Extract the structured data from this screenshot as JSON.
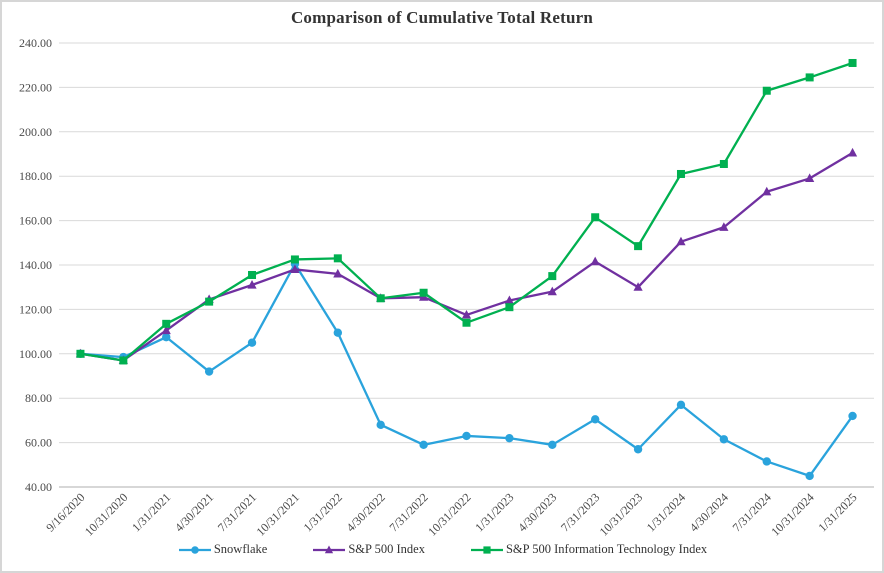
{
  "chart_data": {
    "type": "line",
    "title": "Comparison of Cumulative Total Return",
    "categories": [
      "9/16/2020",
      "10/31/2020",
      "1/31/2021",
      "4/30/2021",
      "7/31/2021",
      "10/31/2021",
      "1/31/2022",
      "4/30/2022",
      "7/31/2022",
      "10/31/2022",
      "1/31/2023",
      "4/30/2023",
      "7/31/2023",
      "10/31/2023",
      "1/31/2024",
      "4/30/2024",
      "7/31/2024",
      "10/31/2024",
      "1/31/2025"
    ],
    "series": [
      {
        "name": "Snowflake",
        "color": "#2AA3DC",
        "marker": "circle",
        "values": [
          100,
          98.5,
          107.5,
          92,
          105,
          140.5,
          109.5,
          68,
          59,
          63,
          62,
          59,
          70.5,
          57,
          77,
          61.5,
          51.5,
          45,
          72
        ]
      },
      {
        "name": "S&P 500 Index",
        "color": "#7030A0",
        "marker": "triangle",
        "values": [
          100,
          97,
          110.5,
          124.5,
          131,
          138,
          136,
          125,
          125.5,
          117.5,
          124,
          128,
          141.5,
          130,
          150.5,
          157,
          173,
          179,
          190.5
        ]
      },
      {
        "name": "S&P 500 Information Technology Index",
        "color": "#00B050",
        "marker": "square",
        "values": [
          100,
          97,
          113.5,
          123.5,
          135.5,
          142.5,
          143,
          125,
          127.5,
          114,
          121,
          135,
          161.5,
          148.5,
          181,
          185.5,
          218.5,
          224.5,
          231
        ]
      }
    ],
    "ylim": [
      40,
      240
    ],
    "ytick_step": 20,
    "yticks": [
      "40.00",
      "60.00",
      "80.00",
      "100.00",
      "120.00",
      "140.00",
      "160.00",
      "180.00",
      "200.00",
      "220.00",
      "240.00"
    ],
    "xlabel": "",
    "ylabel": "",
    "grid": "horizontal",
    "legend_position": "bottom",
    "grid_color": "#D9D9D9",
    "axis_color": "#BFBFBF",
    "text_color": "#4A4A4A"
  }
}
